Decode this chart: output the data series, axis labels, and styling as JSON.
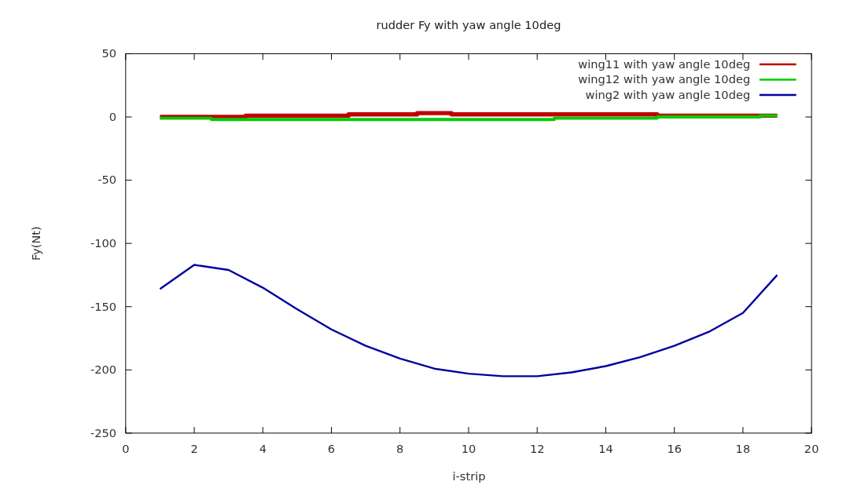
{
  "chart_data": {
    "type": "line",
    "title": "rudder Fy with yaw angle 10deg",
    "xlabel": "i-strip",
    "ylabel": "Fy(Nt)",
    "x": [
      1,
      2,
      3,
      4,
      5,
      6,
      7,
      8,
      9,
      10,
      11,
      12,
      13,
      14,
      15,
      16,
      17,
      18,
      19
    ],
    "series": [
      {
        "name": "wing11 with yaw angle 10deg",
        "type": "step",
        "color": "#c00000",
        "values": [
          0,
          0,
          0,
          1,
          1,
          1,
          2,
          2,
          3,
          2,
          2,
          2,
          2,
          2,
          2,
          1,
          1,
          1,
          1
        ]
      },
      {
        "name": "wing12 with yaw angle 10deg",
        "type": "step",
        "color": "#00cc00",
        "values": [
          -1,
          -1,
          -2,
          -2,
          -2,
          -2,
          -2,
          -2,
          -2,
          -2,
          -2,
          -2,
          -1,
          -1,
          -1,
          0,
          0,
          0,
          1
        ]
      },
      {
        "name": "wing2 with yaw angle 10deg",
        "color": "#0000a0",
        "values": [
          -136,
          -117,
          -121,
          -135,
          -152,
          -168,
          -181,
          -191,
          -199,
          -203,
          -205,
          -205,
          -202,
          -197,
          -190,
          -181,
          -170,
          -155,
          -125
        ]
      }
    ],
    "xlim": [
      0,
      20
    ],
    "xticks": [
      0,
      2,
      4,
      6,
      8,
      10,
      12,
      14,
      16,
      18,
      20
    ],
    "ylim": [
      -250,
      50
    ],
    "yticks": [
      -250,
      -200,
      -150,
      -100,
      -50,
      0,
      50
    ],
    "grid": false,
    "legend": "top right"
  }
}
